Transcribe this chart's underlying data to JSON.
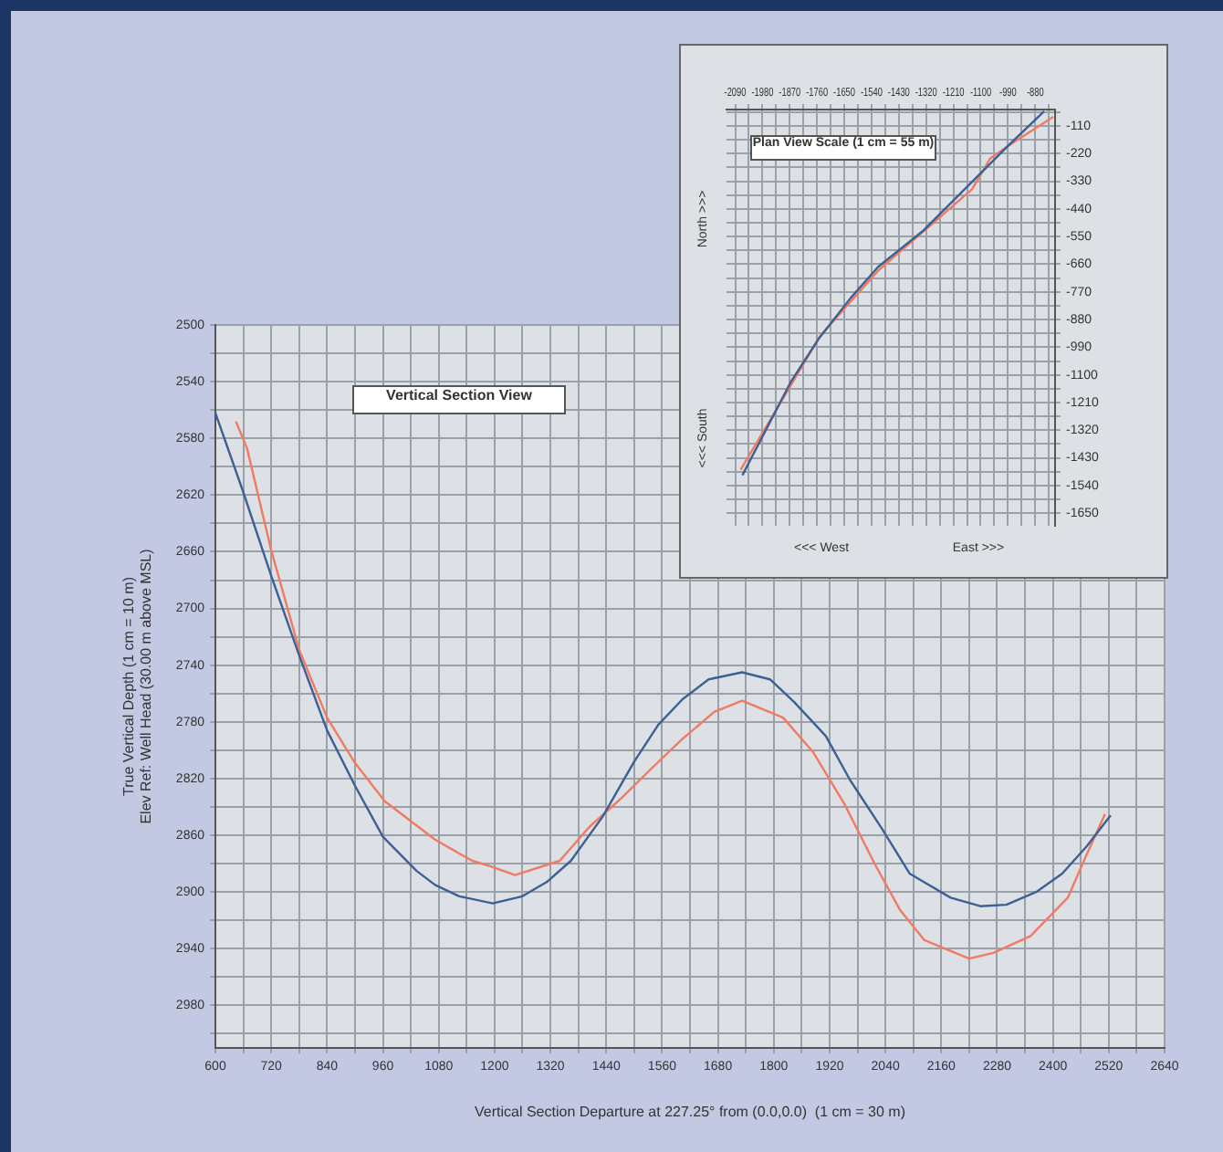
{
  "chart_data": [
    {
      "type": "line",
      "title": "Vertical Section View",
      "xlabel": "Vertical Section Departure at 227.25° from (0.0,0.0)  (1 cm = 30 m)",
      "ylabel": "True Vertical Depth (1 cm = 10 m)\nElev Ref: Well Head (30.00 m above MSL)",
      "xlim": [
        600,
        2640
      ],
      "ylim": [
        3010,
        2500
      ],
      "xticks": [
        600,
        {
          "value": 660,
          "label": null
        },
        720,
        {
          "value": 780,
          "label": null
        },
        840,
        {
          "value": 900,
          "label": null
        },
        960,
        {
          "value": 1020,
          "label": null
        },
        1080,
        {
          "value": 1140,
          "label": null
        },
        1200,
        {
          "value": 1260,
          "label": null
        },
        1320,
        {
          "value": 1380,
          "label": null
        },
        1440,
        {
          "value": 1500,
          "label": null
        },
        1560,
        {
          "value": 1620,
          "label": null
        },
        1680,
        {
          "value": 1740,
          "label": null
        },
        1800,
        {
          "value": 1860,
          "label": null
        },
        1920,
        {
          "value": 1980,
          "label": null
        },
        2040,
        {
          "value": 2100,
          "label": null
        },
        2160,
        {
          "value": 2220,
          "label": null
        },
        2280,
        {
          "value": 2340,
          "label": null
        },
        2400,
        {
          "value": 2460,
          "label": null
        },
        2520,
        {
          "value": 2580,
          "label": null
        },
        2640
      ],
      "yticks": [
        2500,
        {
          "value": 2520,
          "label": null
        },
        2540,
        {
          "value": 2560,
          "label": null
        },
        2580,
        {
          "value": 2600,
          "label": null
        },
        2620,
        {
          "value": 2640,
          "label": null
        },
        2660,
        {
          "value": 2680,
          "label": null
        },
        2700,
        {
          "value": 2720,
          "label": null
        },
        2740,
        {
          "value": 2760,
          "label": null
        },
        2780,
        {
          "value": 2800,
          "label": null
        },
        2820,
        {
          "value": 2840,
          "label": null
        },
        2860,
        {
          "value": 2880,
          "label": null
        },
        2900,
        {
          "value": 2920,
          "label": null
        },
        2940,
        {
          "value": 2960,
          "label": null
        },
        2980,
        {
          "value": 3000,
          "label": null
        }
      ],
      "grid": true,
      "legend": false,
      "marker": "none",
      "series": [
        {
          "color": "#3d5f94",
          "x": [
            600,
            660,
            720,
            780,
            840,
            900,
            960,
            1032,
            1072,
            1124,
            1196,
            1260,
            1312,
            1364,
            1432,
            1500,
            1552,
            1604,
            1660,
            1732,
            1792,
            1844,
            1912,
            1964,
            2032,
            2092,
            2180,
            2244,
            2300,
            2364,
            2420,
            2472,
            2524
          ],
          "values": [
            2562,
            2618,
            2677,
            2733,
            2786,
            2825,
            2861,
            2885,
            2895,
            2903,
            2908,
            2903,
            2893,
            2878,
            2847,
            2808,
            2782,
            2764,
            2750,
            2745,
            2750,
            2766,
            2790,
            2821,
            2855,
            2887,
            2904,
            2910,
            2909,
            2900,
            2887,
            2868,
            2846
          ]
        },
        {
          "color": "#f07a62",
          "x": [
            644,
            668,
            720,
            780,
            840,
            900,
            964,
            1072,
            1152,
            1192,
            1244,
            1340,
            1404,
            1472,
            1540,
            1604,
            1672,
            1732,
            1820,
            1884,
            1952,
            2020,
            2072,
            2124,
            2220,
            2272,
            2352,
            2432,
            2472,
            2512
          ],
          "values": [
            2568,
            2587,
            2659,
            2729,
            2777,
            2809,
            2836,
            2863,
            2878,
            2882,
            2888,
            2878,
            2854,
            2834,
            2812,
            2792,
            2773,
            2765,
            2777,
            2801,
            2838,
            2882,
            2913,
            2934,
            2947,
            2943,
            2931,
            2904,
            2874,
            2845
          ]
        }
      ]
    },
    {
      "type": "line",
      "title": "Plan View  Scale (1 cm = 55 m)",
      "annotations": [
        "<<< West",
        "East >>>",
        "North >>>",
        "<<< South"
      ],
      "xlim": [
        -2125,
        -800
      ],
      "ylim": [
        -1700,
        -45
      ],
      "xticks": [
        -2090,
        {
          "value": -2035,
          "label": null
        },
        -1980,
        {
          "value": -1925,
          "label": null
        },
        -1870,
        {
          "value": -1815,
          "label": null
        },
        -1760,
        {
          "value": -1705,
          "label": null
        },
        -1650,
        {
          "value": -1595,
          "label": null
        },
        -1540,
        {
          "value": -1485,
          "label": null
        },
        -1430,
        {
          "value": -1375,
          "label": null
        },
        -1320,
        {
          "value": -1265,
          "label": null
        },
        -1210,
        {
          "value": -1155,
          "label": null
        },
        -1100,
        {
          "value": -1045,
          "label": null
        },
        -990,
        {
          "value": -935,
          "label": null
        },
        -880,
        {
          "value": -825,
          "label": null
        }
      ],
      "yticks": [
        {
          "value": -55,
          "label": null
        },
        -110,
        {
          "value": -165,
          "label": null
        },
        -220,
        {
          "value": -275,
          "label": null
        },
        -330,
        {
          "value": -385,
          "label": null
        },
        -440,
        {
          "value": -495,
          "label": null
        },
        -550,
        {
          "value": -605,
          "label": null
        },
        -660,
        {
          "value": -715,
          "label": null
        },
        -770,
        {
          "value": -825,
          "label": null
        },
        -880,
        {
          "value": -935,
          "label": null
        },
        -990,
        {
          "value": -1045,
          "label": null
        },
        -1100,
        {
          "value": -1155,
          "label": null
        },
        -1210,
        {
          "value": -1265,
          "label": null
        },
        -1320,
        {
          "value": -1375,
          "label": null
        },
        -1430,
        {
          "value": -1485,
          "label": null
        },
        -1540,
        {
          "value": -1595,
          "label": null
        },
        -1650
      ],
      "grid": true,
      "legend": false,
      "marker": "none",
      "series": [
        {
          "color": "#3d5f94",
          "x": [
            -2061,
            -1966,
            -1864,
            -1755,
            -1624,
            -1514,
            -1332,
            -1186,
            -989,
            -844
          ],
          "values": [
            -1499,
            -1319,
            -1125,
            -959,
            -794,
            -671,
            -527,
            -383,
            -189,
            -52
          ]
        },
        {
          "color": "#f07a62",
          "x": [
            -2068,
            -1747,
            -1514,
            -1135,
            -1062,
            -989,
            -807
          ],
          "values": [
            -1477,
            -945,
            -686,
            -362,
            -240,
            -189,
            -74
          ]
        }
      ]
    }
  ]
}
